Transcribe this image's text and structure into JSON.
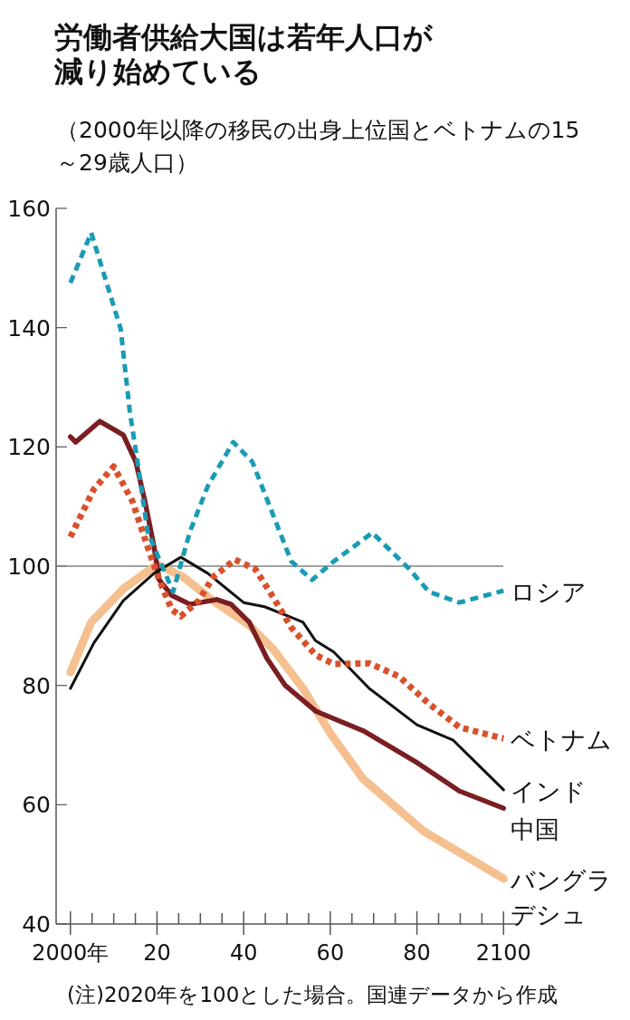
{
  "chart_data": {
    "type": "line",
    "title": "労働者供給大国は若年人口が減り始めている",
    "subtitle": "（2000年以降の移民の出身上位国とベトナムの15～29歳人口）",
    "annotations": [
      "(注)2020年を100とした場合。国連データから作成"
    ],
    "xlim": [
      1996.7,
      2103.7
    ],
    "ylim": [
      40,
      160
    ],
    "xticks": [
      {
        "value": 2000,
        "label": "2000年"
      },
      {
        "value": 2005,
        "label": null
      },
      {
        "value": 2010,
        "label": null
      },
      {
        "value": 2015,
        "label": null
      },
      {
        "value": 2020,
        "label": "20"
      },
      {
        "value": 2025,
        "label": null
      },
      {
        "value": 2030,
        "label": null
      },
      {
        "value": 2035,
        "label": null
      },
      {
        "value": 2040,
        "label": "40"
      },
      {
        "value": 2045,
        "label": null
      },
      {
        "value": 2050,
        "label": null
      },
      {
        "value": 2055,
        "label": null
      },
      {
        "value": 2060,
        "label": "60"
      },
      {
        "value": 2065,
        "label": null
      },
      {
        "value": 2070,
        "label": null
      },
      {
        "value": 2075,
        "label": null
      },
      {
        "value": 2080,
        "label": "80"
      },
      {
        "value": 2085,
        "label": null
      },
      {
        "value": 2090,
        "label": null
      },
      {
        "value": 2095,
        "label": null
      },
      {
        "value": 2100,
        "label": "2100"
      }
    ],
    "yticks": [
      40,
      60,
      80,
      100,
      120,
      140,
      160
    ],
    "ref_lines": [
      {
        "axis": "y",
        "value": 100,
        "color": "#808080"
      }
    ],
    "grid": false,
    "legend": false,
    "series": [
      {
        "name": "ロシア",
        "color": "#1a9bb5",
        "line_style": "dashed",
        "x": [
          2000,
          2004.8,
          2011.6,
          2013.7,
          2015.8,
          2017.8,
          2023.7,
          2027.6,
          2031.7,
          2037.6,
          2042,
          2046.9,
          2051,
          2055.8,
          2060.8,
          2069.7,
          2078,
          2082.8,
          2089.8,
          2100
        ],
        "values": [
          147.5,
          155.9,
          139.8,
          126,
          116,
          105.8,
          95.7,
          105.8,
          113.4,
          120.8,
          117.5,
          108.4,
          100.8,
          97.7,
          100.8,
          105.6,
          99.7,
          95.7,
          93.9,
          95.9
        ]
      },
      {
        "name": "ベトナム",
        "color": "#d9512c",
        "line_style": "dotted",
        "x": [
          2000,
          2005.4,
          2010,
          2014.3,
          2017.8,
          2020.5,
          2023.4,
          2025.5,
          2029.6,
          2033,
          2038,
          2042.7,
          2046.9,
          2051,
          2056.6,
          2060.8,
          2069,
          2075.9,
          2082.8,
          2089.8,
          2100
        ],
        "values": [
          104.9,
          112.9,
          116.7,
          110.9,
          103.3,
          97.7,
          92.7,
          91.6,
          94.2,
          98.2,
          101.1,
          99.5,
          94.7,
          89.7,
          85.1,
          83.6,
          83.7,
          81.5,
          76.9,
          73,
          71.1
        ]
      },
      {
        "name": "インド",
        "color": "#111111",
        "line_style": "solid",
        "x": [
          2000,
          2005.4,
          2012.2,
          2019.3,
          2025.5,
          2031.7,
          2040,
          2044.8,
          2050.4,
          2053.7,
          2056.6,
          2060.8,
          2069,
          2080,
          2088.4,
          2100
        ],
        "values": [
          79.5,
          87.1,
          94.2,
          98.8,
          101.5,
          98.8,
          93.9,
          93.2,
          91.6,
          90.6,
          87.5,
          85.6,
          79.5,
          73.4,
          70.8,
          62.5
        ]
      },
      {
        "name": "中国",
        "color": "#7a1e22",
        "line_style": "solid",
        "x": [
          2000,
          2001.2,
          2006.8,
          2012.2,
          2015.1,
          2017.2,
          2019.3,
          2020.5,
          2023.4,
          2027.6,
          2033.8,
          2037.1,
          2041.3,
          2045.4,
          2049.6,
          2056.6,
          2067.6,
          2079.5,
          2089.8,
          2100
        ],
        "values": [
          121.7,
          120.8,
          124.3,
          122,
          117.5,
          110.9,
          103.3,
          97.7,
          95.1,
          93.6,
          94.4,
          93.6,
          90.6,
          84.5,
          80,
          75.7,
          72.4,
          67.3,
          62.3,
          59.4
        ]
      },
      {
        "name": "バングラデシュ",
        "color": "#f5c08f",
        "line_style": "solid",
        "x": [
          2000,
          2004.8,
          2012.2,
          2020,
          2026,
          2033,
          2041.3,
          2046.9,
          2053.7,
          2060,
          2067.6,
          2081.5,
          2100
        ],
        "values": [
          82.2,
          90.6,
          96.2,
          100.3,
          98.2,
          94.2,
          90.1,
          86,
          79.5,
          72,
          64.3,
          55.6,
          47.6
        ]
      }
    ]
  }
}
